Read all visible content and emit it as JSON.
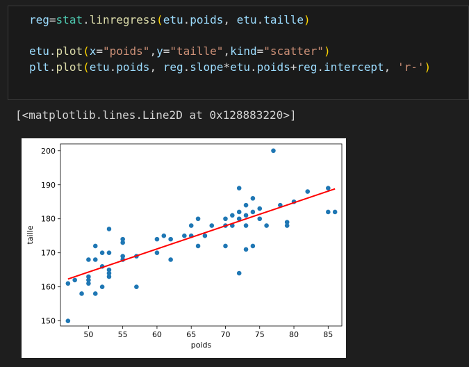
{
  "code_cell": {
    "lines": [
      [
        {
          "t": "reg",
          "c": "var"
        },
        {
          "t": "=",
          "c": "op"
        },
        {
          "t": "stat",
          "c": "mod"
        },
        {
          "t": ".",
          "c": "op"
        },
        {
          "t": "linregress",
          "c": "fn"
        },
        {
          "t": "(",
          "c": "paren"
        },
        {
          "t": "etu",
          "c": "var"
        },
        {
          "t": ".",
          "c": "op"
        },
        {
          "t": "poids",
          "c": "var"
        },
        {
          "t": ", ",
          "c": "plain"
        },
        {
          "t": "etu",
          "c": "var"
        },
        {
          "t": ".",
          "c": "op"
        },
        {
          "t": "taille",
          "c": "var"
        },
        {
          "t": ")",
          "c": "paren"
        }
      ],
      [],
      [
        {
          "t": "etu",
          "c": "var"
        },
        {
          "t": ".",
          "c": "op"
        },
        {
          "t": "plot",
          "c": "fn"
        },
        {
          "t": "(",
          "c": "paren"
        },
        {
          "t": "x",
          "c": "var"
        },
        {
          "t": "=",
          "c": "op"
        },
        {
          "t": "\"poids\"",
          "c": "str"
        },
        {
          "t": ",",
          "c": "plain"
        },
        {
          "t": "y",
          "c": "var"
        },
        {
          "t": "=",
          "c": "op"
        },
        {
          "t": "\"taille\"",
          "c": "str"
        },
        {
          "t": ",",
          "c": "plain"
        },
        {
          "t": "kind",
          "c": "var"
        },
        {
          "t": "=",
          "c": "op"
        },
        {
          "t": "\"scatter\"",
          "c": "str"
        },
        {
          "t": ")",
          "c": "paren"
        }
      ],
      [
        {
          "t": "plt",
          "c": "var"
        },
        {
          "t": ".",
          "c": "op"
        },
        {
          "t": "plot",
          "c": "fn"
        },
        {
          "t": "(",
          "c": "paren"
        },
        {
          "t": "etu",
          "c": "var"
        },
        {
          "t": ".",
          "c": "op"
        },
        {
          "t": "poids",
          "c": "var"
        },
        {
          "t": ", ",
          "c": "plain"
        },
        {
          "t": "reg",
          "c": "var"
        },
        {
          "t": ".",
          "c": "op"
        },
        {
          "t": "slope",
          "c": "var"
        },
        {
          "t": "*",
          "c": "op"
        },
        {
          "t": "etu",
          "c": "var"
        },
        {
          "t": ".",
          "c": "op"
        },
        {
          "t": "poids",
          "c": "var"
        },
        {
          "t": "+",
          "c": "op"
        },
        {
          "t": "reg",
          "c": "var"
        },
        {
          "t": ".",
          "c": "op"
        },
        {
          "t": "intercept",
          "c": "var"
        },
        {
          "t": ", ",
          "c": "plain"
        },
        {
          "t": "'r-'",
          "c": "str"
        },
        {
          "t": ")",
          "c": "paren"
        }
      ]
    ]
  },
  "output": {
    "text": "[<matplotlib.lines.Line2D at 0x128883220>]"
  },
  "colors": {
    "background": "#1e1e1e",
    "scatter": "#1f77b4",
    "regression_line": "#ff0000"
  },
  "chart_data": {
    "type": "scatter",
    "xlabel": "poids",
    "ylabel": "taille",
    "xlim": [
      45.9,
      87.0
    ],
    "ylim": [
      148.5,
      202.0
    ],
    "xticks": [
      50,
      55,
      60,
      65,
      70,
      75,
      80,
      85
    ],
    "yticks": [
      150,
      160,
      170,
      180,
      190,
      200
    ],
    "grid": false,
    "points": [
      [
        47,
        150
      ],
      [
        47,
        161
      ],
      [
        48,
        162
      ],
      [
        49,
        158
      ],
      [
        50,
        168
      ],
      [
        50,
        163
      ],
      [
        50,
        162
      ],
      [
        50,
        161
      ],
      [
        51,
        172
      ],
      [
        51,
        168
      ],
      [
        51,
        158
      ],
      [
        52,
        170
      ],
      [
        52,
        166
      ],
      [
        52,
        160
      ],
      [
        53,
        177
      ],
      [
        53,
        170
      ],
      [
        53,
        165
      ],
      [
        53,
        164
      ],
      [
        53,
        163
      ],
      [
        55,
        174
      ],
      [
        55,
        173
      ],
      [
        55,
        169
      ],
      [
        55,
        168
      ],
      [
        57,
        169
      ],
      [
        57,
        160
      ],
      [
        60,
        174
      ],
      [
        60,
        170
      ],
      [
        61,
        175
      ],
      [
        62,
        174
      ],
      [
        62,
        168
      ],
      [
        64,
        175
      ],
      [
        65,
        178
      ],
      [
        65,
        175
      ],
      [
        66,
        180
      ],
      [
        66,
        172
      ],
      [
        67,
        175
      ],
      [
        68,
        178
      ],
      [
        70,
        180
      ],
      [
        70,
        178
      ],
      [
        70,
        172
      ],
      [
        71,
        181
      ],
      [
        71,
        178
      ],
      [
        72,
        189
      ],
      [
        72,
        182
      ],
      [
        72,
        180
      ],
      [
        72,
        164
      ],
      [
        73,
        184
      ],
      [
        73,
        181
      ],
      [
        73,
        178
      ],
      [
        73,
        171
      ],
      [
        74,
        186
      ],
      [
        74,
        182
      ],
      [
        74,
        172
      ],
      [
        75,
        183
      ],
      [
        75,
        180
      ],
      [
        76,
        178
      ],
      [
        77,
        200
      ],
      [
        78,
        184
      ],
      [
        79,
        179
      ],
      [
        79,
        178
      ],
      [
        80,
        185
      ],
      [
        82,
        188
      ],
      [
        85,
        189
      ],
      [
        85,
        182
      ],
      [
        86,
        182
      ]
    ],
    "regression": {
      "x": [
        47,
        86
      ],
      "y": [
        162.3,
        188.8
      ]
    }
  }
}
